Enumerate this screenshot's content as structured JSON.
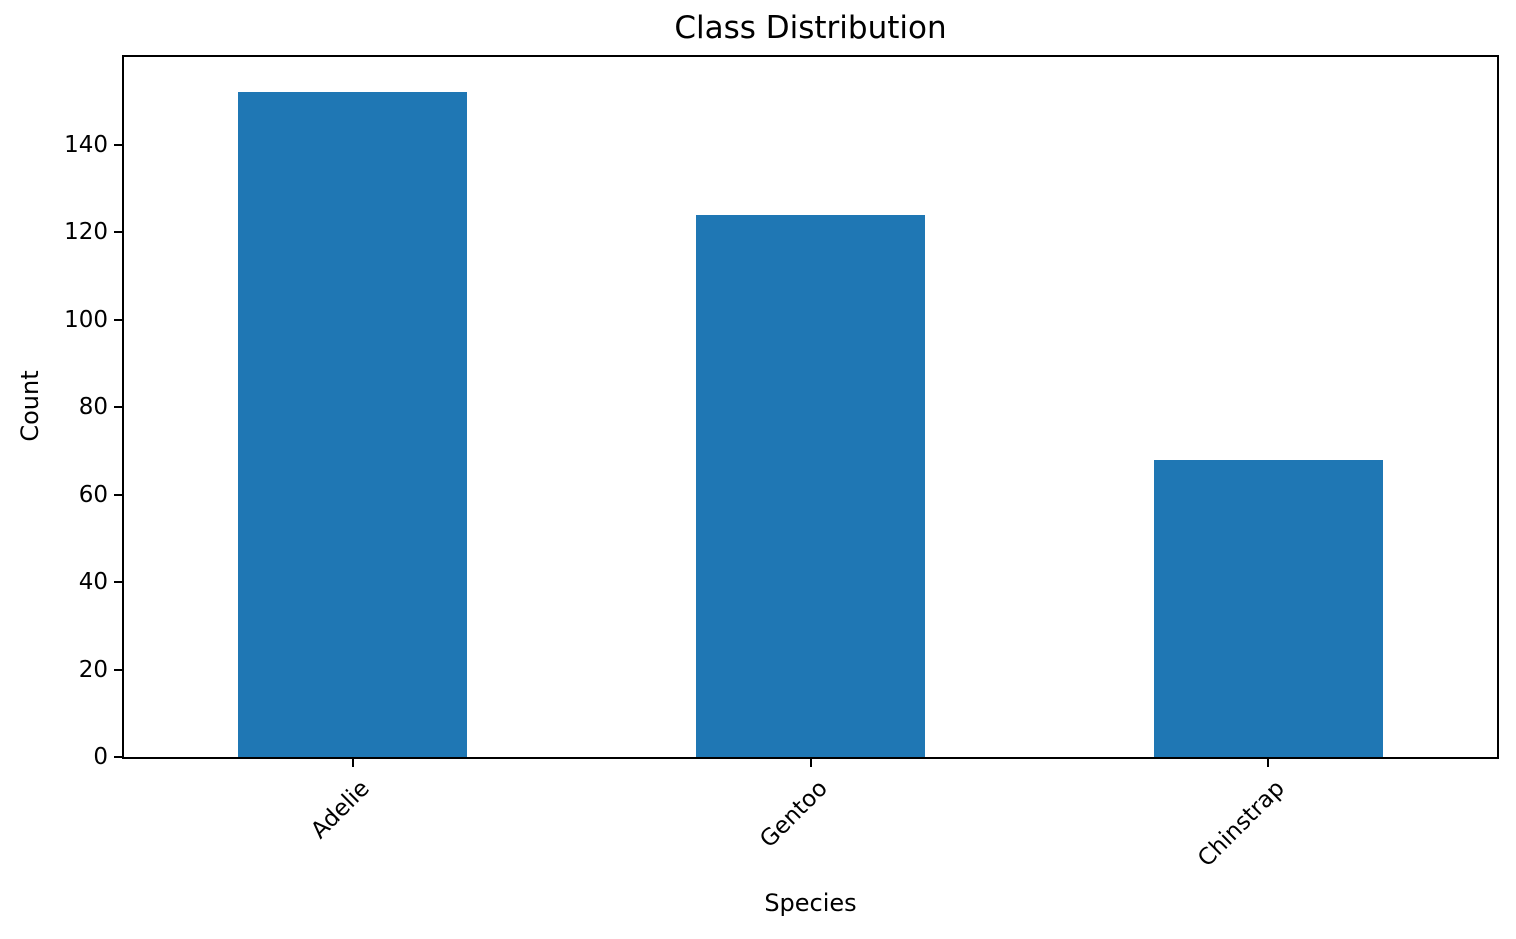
{
  "chart_data": {
    "type": "bar",
    "title": "Class Distribution",
    "xlabel": "Species",
    "ylabel": "Count",
    "categories": [
      "Adelie",
      "Gentoo",
      "Chinstrap"
    ],
    "values": [
      152,
      124,
      68
    ],
    "bar_color": "#1f77b4",
    "ylim": [
      0,
      160
    ],
    "yticks": [
      0,
      20,
      40,
      60,
      80,
      100,
      120,
      140
    ],
    "xtick_rotation_deg": 45,
    "grid": false,
    "legend": "none",
    "background_color": "#ffffff",
    "spine_color": "#000000"
  }
}
